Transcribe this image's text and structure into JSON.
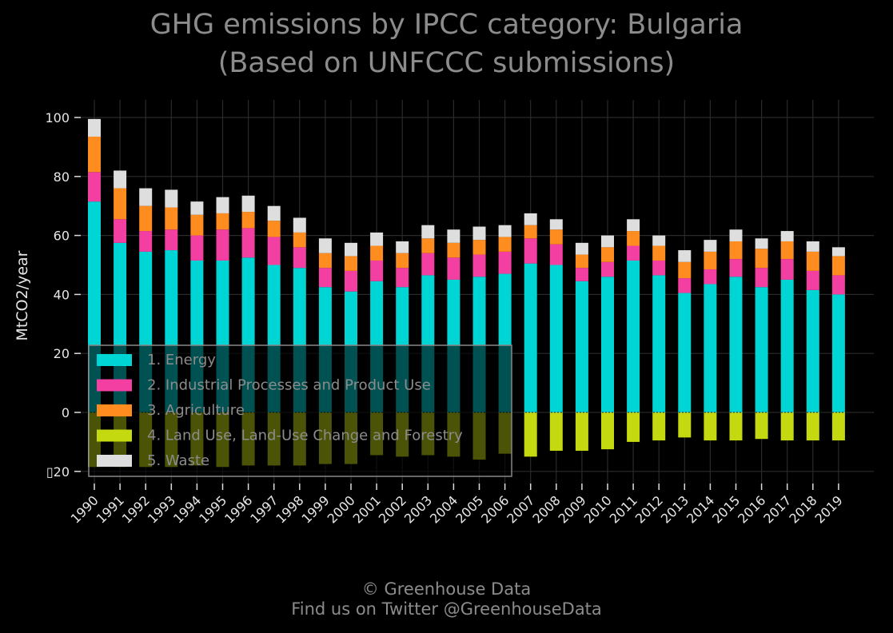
{
  "chart_data": {
    "type": "bar",
    "stacked": true,
    "title_line1": "GHG emissions by IPCC category: Bulgaria",
    "title_line2": "(Based on UNFCCC submissions)",
    "ylabel": "MtCO2/year",
    "ylim": [
      -25,
      105
    ],
    "yticks": [
      {
        "value": 100,
        "label": "100"
      },
      {
        "value": 80,
        "label": "80"
      },
      {
        "value": 60,
        "label": "60"
      },
      {
        "value": 40,
        "label": "40"
      },
      {
        "value": 20,
        "label": "20"
      },
      {
        "value": 0,
        "label": "0"
      },
      {
        "value": -20,
        "label": "▯20"
      }
    ],
    "categories": [
      "1990",
      "1991",
      "1992",
      "1993",
      "1994",
      "1995",
      "1996",
      "1997",
      "1998",
      "1999",
      "2000",
      "2001",
      "2002",
      "2003",
      "2004",
      "2005",
      "2006",
      "2007",
      "2008",
      "2009",
      "2010",
      "2011",
      "2012",
      "2013",
      "2014",
      "2015",
      "2016",
      "2017",
      "2018",
      "2019"
    ],
    "series": [
      {
        "name": "1. Energy",
        "color": "#00d5d5",
        "values": [
          71.5,
          57.5,
          54.5,
          55,
          51.5,
          51.5,
          52.5,
          50,
          49,
          42.5,
          41,
          44.5,
          42.5,
          46.5,
          45,
          46,
          47,
          50.5,
          50,
          44.5,
          46,
          51.5,
          46.5,
          40.5,
          43.5,
          46,
          42.5,
          45,
          41.5,
          40
        ]
      },
      {
        "name": "2. Industrial Processes and Product Use",
        "color": "#f43fa2",
        "values": [
          10,
          8,
          7,
          7,
          8.5,
          10.5,
          10,
          9.5,
          7,
          6.5,
          7,
          7,
          6.5,
          7.5,
          7.5,
          7.5,
          7.5,
          8.5,
          7,
          4.5,
          5,
          5,
          5,
          5,
          5,
          6,
          6.5,
          7,
          6.5,
          6.5
        ]
      },
      {
        "name": "3. Agriculture",
        "color": "#ff8c1f",
        "values": [
          12,
          10.5,
          8.5,
          7.5,
          7,
          5.5,
          5.5,
          5.5,
          5,
          5,
          5,
          5,
          5,
          5,
          5,
          5,
          5,
          4.5,
          5,
          4.5,
          5,
          5,
          5,
          5.5,
          6,
          6,
          6.5,
          6,
          6.5,
          6.5
        ]
      },
      {
        "name": "4. Land Use, Land-Use Change and Forestry",
        "color": "#c5d910",
        "values": [
          -18.5,
          -18.5,
          -18.5,
          -18.5,
          -18,
          -18.5,
          -18,
          -18,
          -18,
          -17.5,
          -17.5,
          -14.5,
          -15,
          -14.5,
          -15,
          -16,
          -14,
          -15,
          -13,
          -13,
          -12.5,
          -10,
          -9.5,
          -8.5,
          -9.5,
          -9.5,
          -9,
          -9.5,
          -9.5,
          -9.5
        ]
      },
      {
        "name": "5. Waste",
        "color": "#dedede",
        "values": [
          6,
          6,
          6,
          6,
          4.5,
          5.5,
          5.5,
          5,
          5,
          5,
          4.5,
          4.5,
          4,
          4.5,
          4.5,
          4.5,
          4,
          4,
          3.5,
          4,
          4,
          4,
          3.5,
          4,
          4,
          4,
          3.5,
          3.5,
          3.5,
          3
        ]
      }
    ],
    "legend_position": "lower-left",
    "grid": true
  },
  "footer": {
    "credit": "© Greenhouse Data",
    "twitter": "Find us on Twitter @GreenhouseData"
  }
}
